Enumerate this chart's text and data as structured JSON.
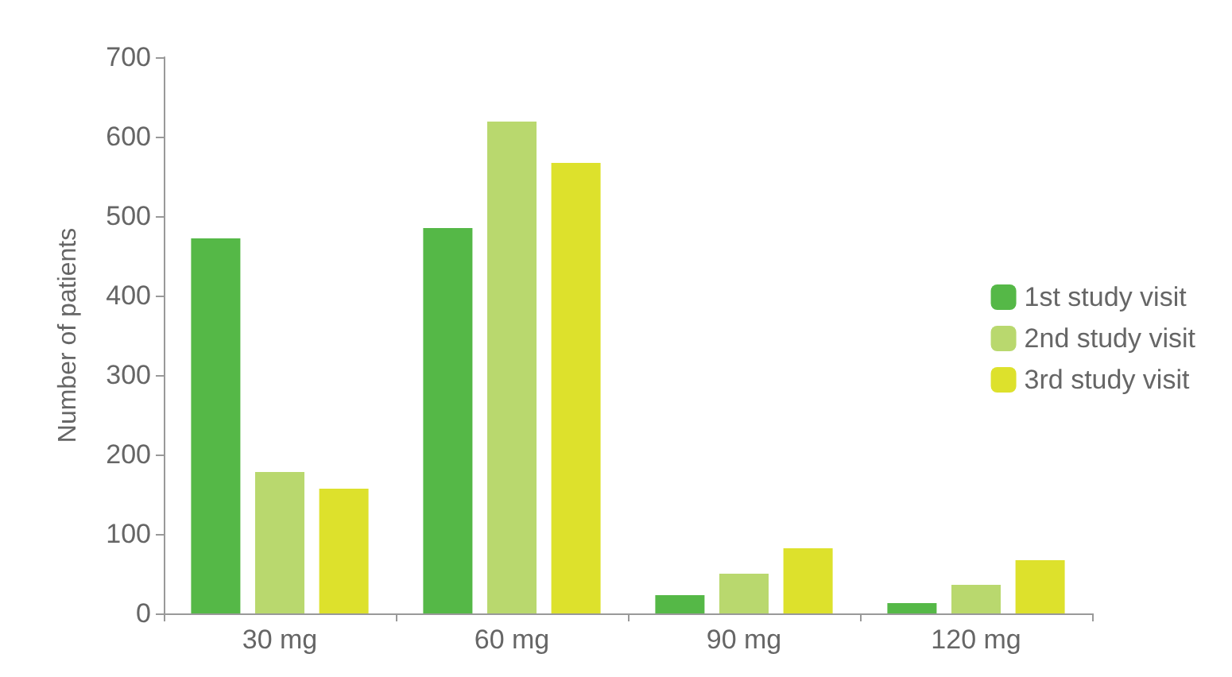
{
  "chart_data": {
    "type": "bar",
    "ylabel": "Number of patients",
    "categories": [
      "30 mg",
      "60 mg",
      "90 mg",
      "120 mg"
    ],
    "series": [
      {
        "name": "1st study visit",
        "color": "#55b847",
        "values": [
          472,
          485,
          23,
          13
        ]
      },
      {
        "name": "2nd study visit",
        "color": "#b9d86e",
        "values": [
          178,
          619,
          50,
          36
        ]
      },
      {
        "name": "3rd study visit",
        "color": "#dde12c",
        "values": [
          157,
          567,
          82,
          67
        ]
      }
    ],
    "ylim": [
      0,
      700
    ],
    "yticks": [
      0,
      100,
      200,
      300,
      400,
      500,
      600,
      700
    ],
    "grid": false,
    "legend": "right"
  }
}
